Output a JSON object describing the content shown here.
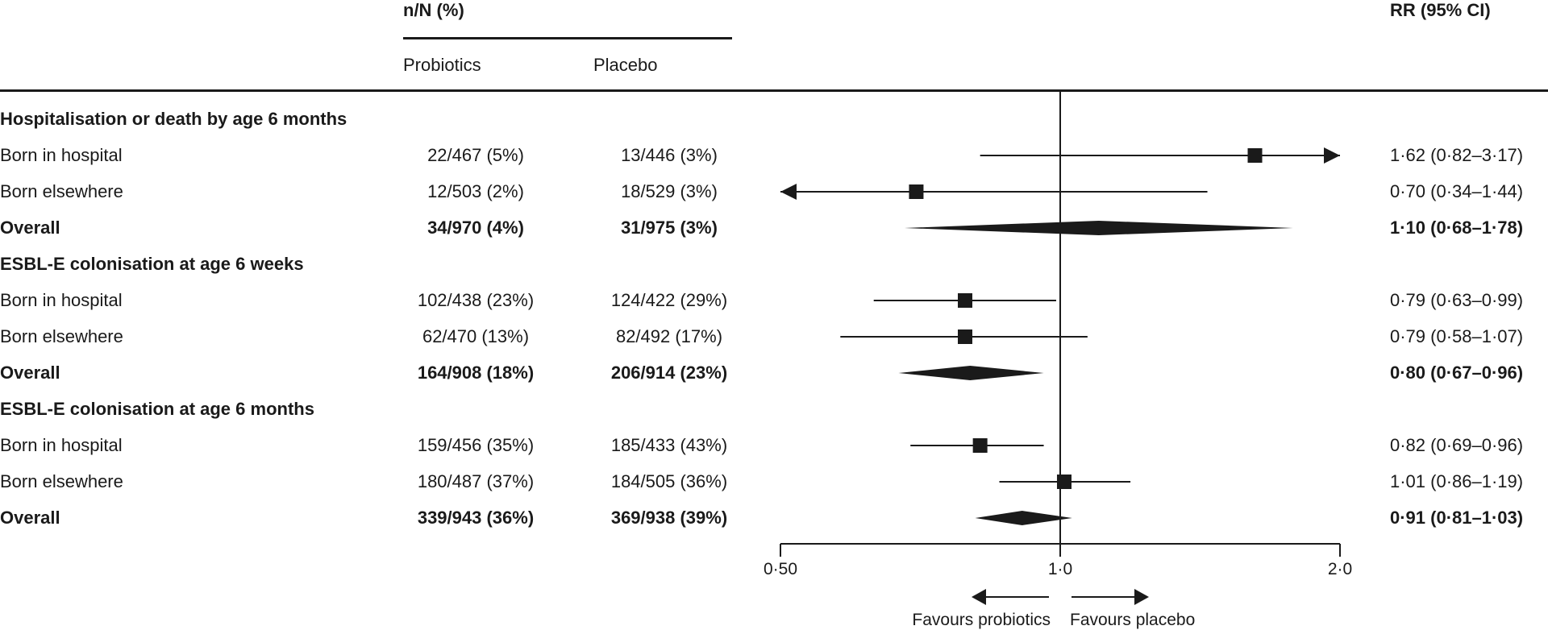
{
  "header": {
    "nN_label": "n/N (%)",
    "probiotics_label": "Probiotics",
    "placebo_label": "Placebo",
    "rr_label": "RR (95% CI)"
  },
  "sections": [
    {
      "title": "Hospitalisation or death by age 6 months",
      "rows": [
        {
          "label": "Born in hospital",
          "probiotics": "22/467 (5%)",
          "placebo": "13/446 (3%)",
          "rr_text": "1·62 (0·82–3·17)",
          "bold": false
        },
        {
          "label": "Born elsewhere",
          "probiotics": "12/503 (2%)",
          "placebo": "18/529 (3%)",
          "rr_text": "0·70 (0·34–1·44)",
          "bold": false
        },
        {
          "label": "Overall",
          "probiotics": "34/970 (4%)",
          "placebo": "31/975 (3%)",
          "rr_text": "1·10 (0·68–1·78)",
          "bold": true
        }
      ]
    },
    {
      "title": "ESBL-E colonisation at age 6 weeks",
      "rows": [
        {
          "label": "Born in hospital",
          "probiotics": "102/438 (23%)",
          "placebo": "124/422 (29%)",
          "rr_text": "0·79 (0·63–0·99)",
          "bold": false
        },
        {
          "label": "Born elsewhere",
          "probiotics": "62/470 (13%)",
          "placebo": "82/492 (17%)",
          "rr_text": "0·79 (0·58–1·07)",
          "bold": false
        },
        {
          "label": "Overall",
          "probiotics": "164/908 (18%)",
          "placebo": "206/914 (23%)",
          "rr_text": "0·80 (0·67–0·96)",
          "bold": true
        }
      ]
    },
    {
      "title": "ESBL-E colonisation at age 6 months",
      "rows": [
        {
          "label": "Born in hospital",
          "probiotics": "159/456 (35%)",
          "placebo": "185/433 (43%)",
          "rr_text": "0·82 (0·69–0·96)",
          "bold": false
        },
        {
          "label": "Born elsewhere",
          "probiotics": "180/487 (37%)",
          "placebo": "184/505 (36%)",
          "rr_text": "1·01 (0·86–1·19)",
          "bold": false
        },
        {
          "label": "Overall",
          "probiotics": "339/943 (36%)",
          "placebo": "369/938 (39%)",
          "rr_text": "0·91 (0·81–1·03)",
          "bold": true
        }
      ]
    }
  ],
  "chart_data": {
    "type": "forest",
    "x_scale": "log",
    "xlim": [
      0.5,
      2.0
    ],
    "reference_line": 1.0,
    "x_ticks": [
      {
        "value": 0.5,
        "label": "0·50"
      },
      {
        "value": 1.0,
        "label": "1·0"
      },
      {
        "value": 2.0,
        "label": "2·0"
      }
    ],
    "favours_left": "Favours probiotics",
    "favours_right": "Favours placebo",
    "estimates": [
      {
        "group": "Hospitalisation or death by age 6 months",
        "label": "Born in hospital",
        "rr": 1.62,
        "lo": 0.82,
        "hi": 3.17,
        "marker": "square"
      },
      {
        "group": "Hospitalisation or death by age 6 months",
        "label": "Born elsewhere",
        "rr": 0.7,
        "lo": 0.34,
        "hi": 1.44,
        "marker": "square"
      },
      {
        "group": "Hospitalisation or death by age 6 months",
        "label": "Overall",
        "rr": 1.1,
        "lo": 0.68,
        "hi": 1.78,
        "marker": "diamond"
      },
      {
        "group": "ESBL-E colonisation at age 6 weeks",
        "label": "Born in hospital",
        "rr": 0.79,
        "lo": 0.63,
        "hi": 0.99,
        "marker": "square"
      },
      {
        "group": "ESBL-E colonisation at age 6 weeks",
        "label": "Born elsewhere",
        "rr": 0.79,
        "lo": 0.58,
        "hi": 1.07,
        "marker": "square"
      },
      {
        "group": "ESBL-E colonisation at age 6 weeks",
        "label": "Overall",
        "rr": 0.8,
        "lo": 0.67,
        "hi": 0.96,
        "marker": "diamond"
      },
      {
        "group": "ESBL-E colonisation at age 6 months",
        "label": "Born in hospital",
        "rr": 0.82,
        "lo": 0.69,
        "hi": 0.96,
        "marker": "square"
      },
      {
        "group": "ESBL-E colonisation at age 6 months",
        "label": "Born elsewhere",
        "rr": 1.01,
        "lo": 0.86,
        "hi": 1.19,
        "marker": "square"
      },
      {
        "group": "ESBL-E colonisation at age 6 months",
        "label": "Overall",
        "rr": 0.91,
        "lo": 0.81,
        "hi": 1.03,
        "marker": "diamond"
      }
    ],
    "colors": {
      "ink": "#1a1a1a"
    }
  }
}
